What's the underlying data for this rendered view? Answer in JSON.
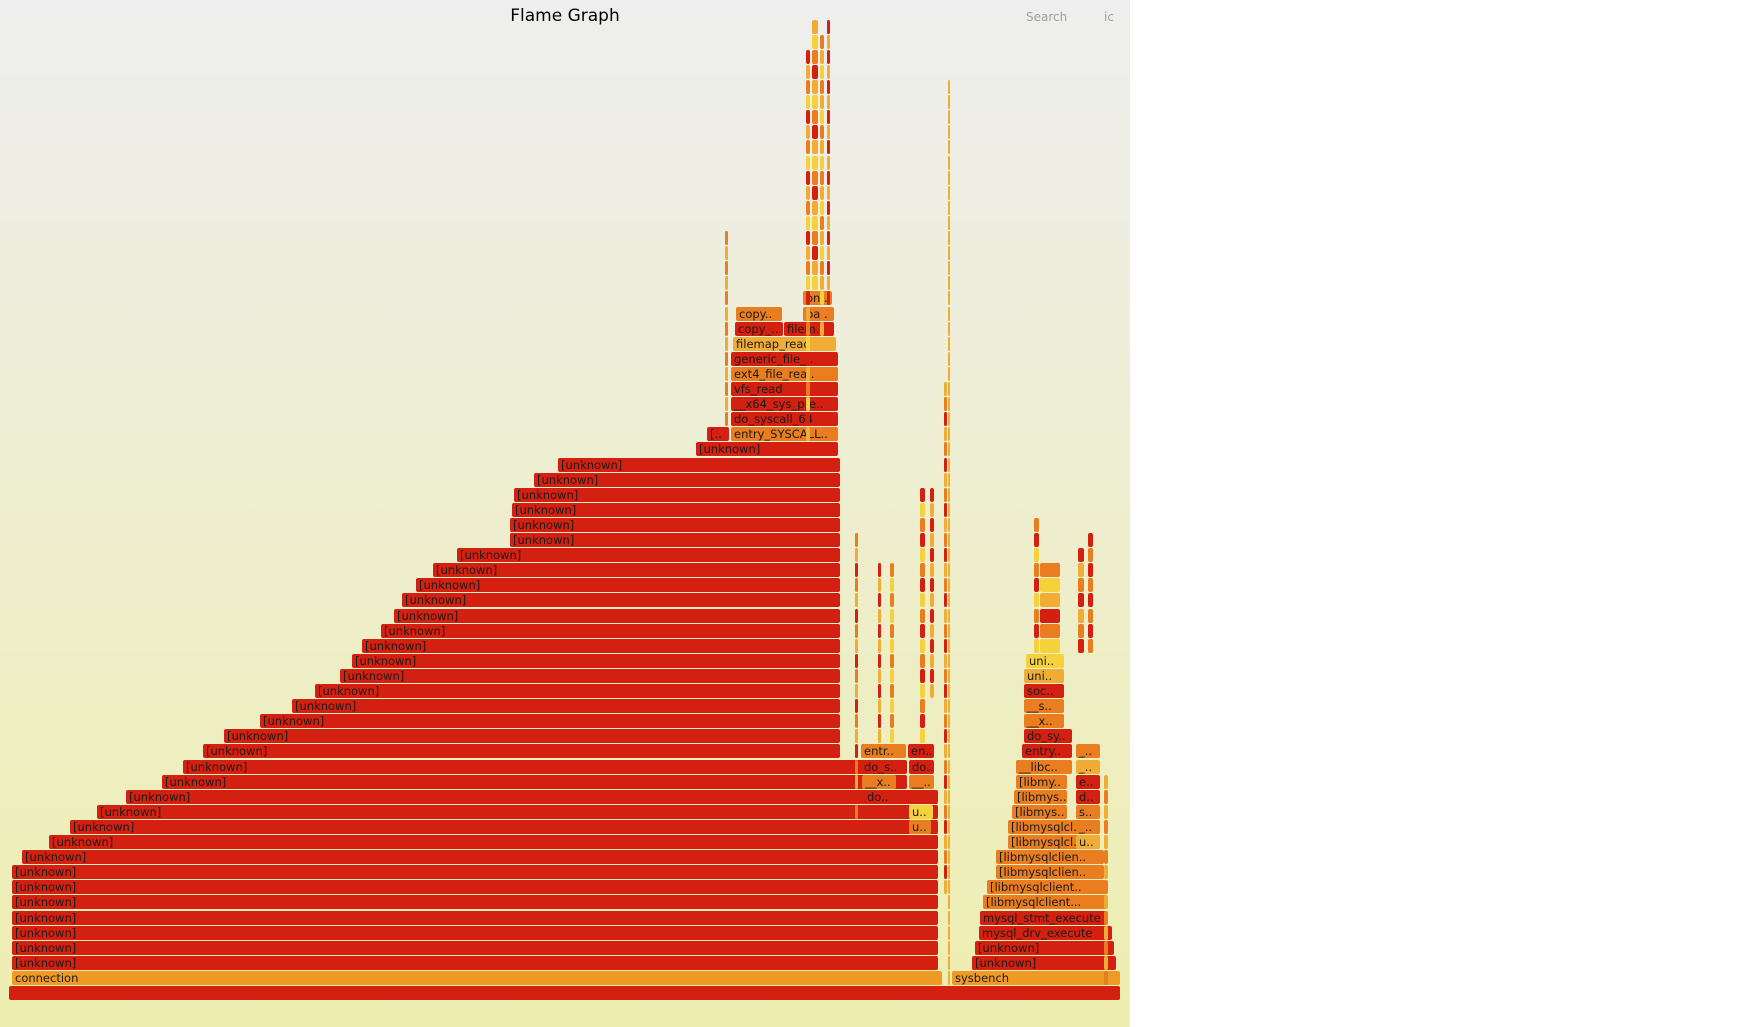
{
  "title": "Flame Graph",
  "controls": {
    "search_label": "Search",
    "ic_label": "ic"
  },
  "colors": {
    "red": "#d42010",
    "red2": "#e53412",
    "orange": "#e97d1f",
    "orange2": "#f09a26",
    "amber": "#f0ad35",
    "yellow": "#f5d23c",
    "bg_top": "#eeeeee",
    "bg_bottom": "#eeeeb0"
  },
  "frames": {
    "root": "",
    "connection": "connection",
    "sysbench": "sysbench",
    "unknown": "[unknown]",
    "entry_syscall": "entry_SYSCALL..",
    "entry_syscall_short": "[..",
    "do_syscall_64": "do_syscall_64",
    "x64_sys_pre": "__x64_sys_pre..",
    "vfs_read": "vfs_read",
    "ext4_file_rea": "ext4_file_rea..",
    "generic_file": "generic_file_..",
    "filemap_read": "filemap_read",
    "copy_1": "copy_..",
    "filem": "filem..",
    "copy_2": "copy..",
    "pa": "pa..",
    "on": "on..",
    "mysql_drv_execute": "mysql_drv_execute",
    "mysql_stmt_execute": "mysql_stmt_execute",
    "libmysqlclient_1": "[libmysqlclient...",
    "libmysqlclient_2": "[libmysqlclient..",
    "libmysqlclien": "[libmysqlclien..",
    "libmysqlcl": "[libmysqlcl..",
    "libmys": "[libmys..",
    "libmy": "[libmy..",
    "libc": "__libc..",
    "entry_short": "entry..",
    "do_sy": "do_sy..",
    "x_1": "__x..",
    "s_1": "__s..",
    "soc": "soc..",
    "uni": "uni..",
    "en": "en..",
    "do_dot": "do..",
    "u_dots": "__..",
    "u": "u..",
    "entr": "entr..",
    "do_s": "do_s..",
    "x_2": "__x..",
    "do_2": "do..",
    "e": "e..",
    "d": "d..",
    "s": "s..",
    "u_short": "_..",
    "u2": "u.."
  }
}
